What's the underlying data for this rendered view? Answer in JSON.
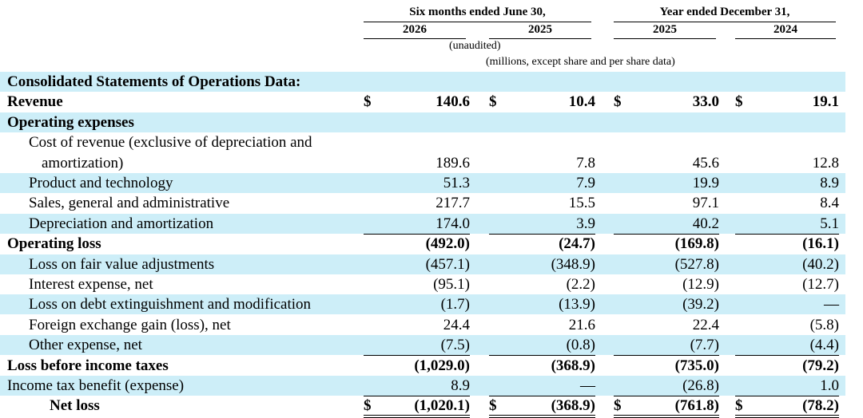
{
  "header": {
    "six_months": "Six months ended June 30,",
    "year_ended": "Year ended December 31,",
    "years": [
      "2026",
      "2025",
      "2025",
      "2024"
    ],
    "unaudited": "(unaudited)",
    "units": "(millions, except share and per share data)"
  },
  "rows": [
    {
      "label": "Consolidated Statements of Operations Data:",
      "bold": true,
      "shade": true,
      "indent": 0,
      "values": [
        "",
        "",
        "",
        ""
      ]
    },
    {
      "label": "Revenue",
      "bold": true,
      "shade": false,
      "indent": 0,
      "dollar": true,
      "values": [
        "140.6",
        "10.4",
        "33.0",
        "19.1"
      ]
    },
    {
      "label": "Operating expenses",
      "bold": true,
      "shade": true,
      "indent": 0,
      "values": [
        "",
        "",
        "",
        ""
      ]
    },
    {
      "label": "Cost of revenue (exclusive of depreciation and",
      "bold": false,
      "shade": false,
      "indent": 1,
      "values": [
        "",
        "",
        "",
        ""
      ]
    },
    {
      "label": "amortization)",
      "bold": false,
      "shade": false,
      "indent": 2,
      "values": [
        "189.6",
        "7.8",
        "45.6",
        "12.8"
      ]
    },
    {
      "label": "Product and technology",
      "bold": false,
      "shade": true,
      "indent": 1,
      "values": [
        "51.3",
        "7.9",
        "19.9",
        "8.9"
      ]
    },
    {
      "label": "Sales, general and administrative",
      "bold": false,
      "shade": false,
      "indent": 1,
      "values": [
        "217.7",
        "15.5",
        "97.1",
        "8.4"
      ]
    },
    {
      "label": "Depreciation and amortization",
      "bold": false,
      "shade": true,
      "indent": 1,
      "values": [
        "174.0",
        "3.9",
        "40.2",
        "5.1"
      ],
      "underline": true
    },
    {
      "label": "Operating loss",
      "bold": true,
      "shade": false,
      "indent": 0,
      "values": [
        "(492.0)",
        "(24.7)",
        "(169.8)",
        "(16.1)"
      ]
    },
    {
      "label": "Loss on fair value adjustments",
      "bold": false,
      "shade": true,
      "indent": 1,
      "values": [
        "(457.1)",
        "(348.9)",
        "(527.8)",
        "(40.2)"
      ]
    },
    {
      "label": "Interest expense, net",
      "bold": false,
      "shade": false,
      "indent": 1,
      "values": [
        "(95.1)",
        "(2.2)",
        "(12.9)",
        "(12.7)"
      ]
    },
    {
      "label": "Loss on debt extinguishment and modification",
      "bold": false,
      "shade": true,
      "indent": 1,
      "values": [
        "(1.7)",
        "(13.9)",
        "(39.2)",
        "—"
      ]
    },
    {
      "label": "Foreign exchange gain (loss), net",
      "bold": false,
      "shade": false,
      "indent": 1,
      "values": [
        "24.4",
        "21.6",
        "22.4",
        "(5.8)"
      ]
    },
    {
      "label": "Other expense, net",
      "bold": false,
      "shade": true,
      "indent": 1,
      "values": [
        "(7.5)",
        "(0.8)",
        "(7.7)",
        "(4.4)"
      ],
      "underline": true
    },
    {
      "label": "Loss before income taxes",
      "bold": true,
      "shade": false,
      "indent": 0,
      "values": [
        "(1,029.0)",
        "(368.9)",
        "(735.0)",
        "(79.2)"
      ]
    },
    {
      "label": "Income tax benefit (expense)",
      "bold": false,
      "shade": true,
      "indent": 0,
      "values": [
        "8.9",
        "—",
        "(26.8)",
        "1.0"
      ],
      "underline": true
    },
    {
      "label": "Net loss",
      "bold": true,
      "shade": false,
      "indent": 3,
      "dollar": true,
      "values": [
        "(1,020.1)",
        "(368.9)",
        "(761.8)",
        "(78.2)"
      ],
      "double": true
    }
  ]
}
